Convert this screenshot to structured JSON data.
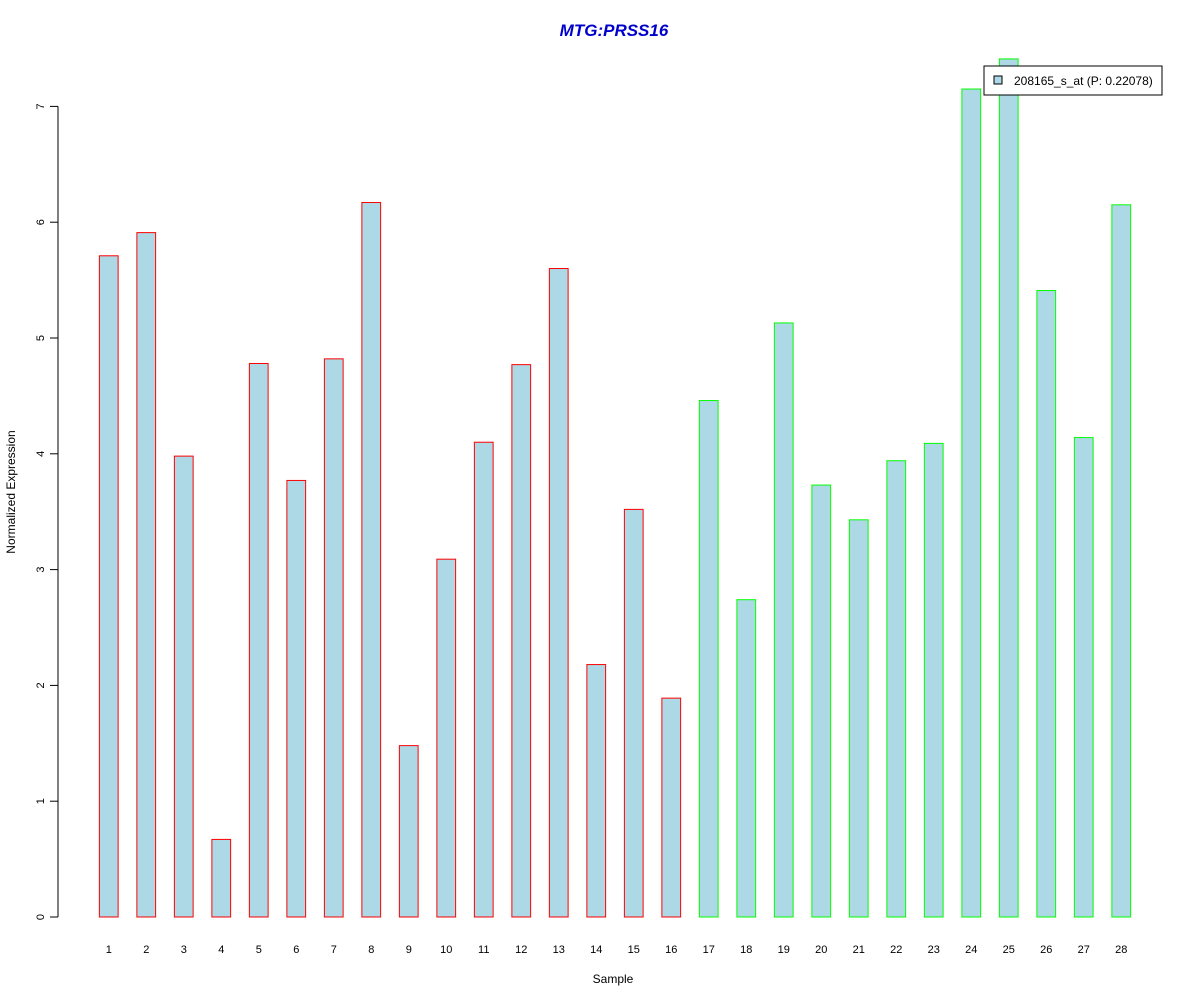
{
  "chart_data": {
    "type": "bar",
    "title": "MTG:PRSS16",
    "xlabel": "Sample",
    "ylabel": "Normalized Expression",
    "categories": [
      "1",
      "2",
      "3",
      "4",
      "5",
      "6",
      "7",
      "8",
      "9",
      "10",
      "11",
      "12",
      "13",
      "14",
      "15",
      "16",
      "17",
      "18",
      "19",
      "20",
      "21",
      "22",
      "23",
      "24",
      "25",
      "26",
      "27",
      "28"
    ],
    "series": [
      {
        "name": "208165_s_at (P: 0.22078)",
        "values": [
          5.71,
          5.91,
          3.98,
          0.67,
          4.78,
          3.77,
          4.82,
          6.17,
          1.48,
          3.09,
          4.1,
          4.77,
          5.6,
          2.18,
          3.52,
          1.89,
          4.46,
          2.74,
          5.13,
          3.73,
          3.43,
          3.94,
          4.09,
          7.15,
          7.41,
          5.41,
          4.14,
          6.15
        ]
      }
    ],
    "groups": [
      {
        "samples": [
          1,
          16
        ],
        "border_color": "#ff0000"
      },
      {
        "samples": [
          17,
          28
        ],
        "border_color": "#00ff00"
      }
    ],
    "yticks": [
      0,
      1,
      2,
      3,
      4,
      5,
      6,
      7
    ],
    "ylim": [
      0,
      7.41
    ],
    "bar_fill": "#add8e6",
    "title_color": "#0000cc",
    "grid": false,
    "legend_position": "top-right"
  }
}
